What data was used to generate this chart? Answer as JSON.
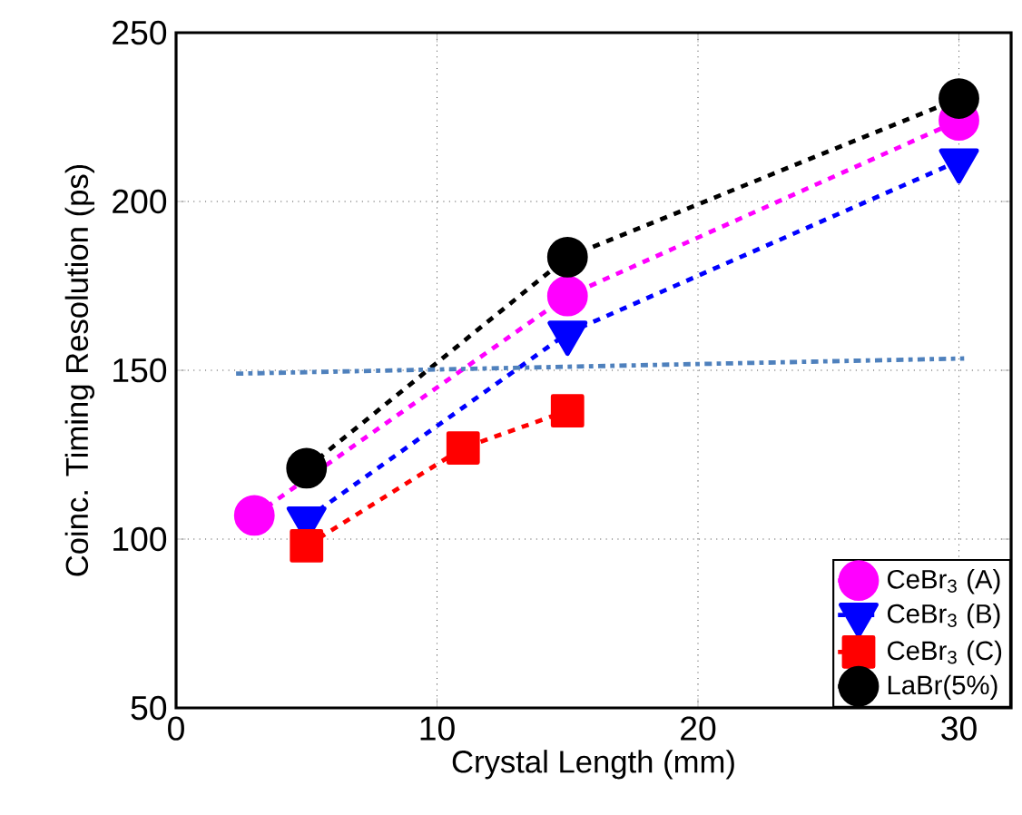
{
  "chart_data": {
    "type": "line",
    "xlabel": "Crystal Length (mm)",
    "ylabel": "Coinc. Timing Resolution (ps)",
    "xlim": [
      0,
      32
    ],
    "ylim": [
      50,
      250
    ],
    "xticks": [
      0,
      10,
      20,
      30
    ],
    "yticks": [
      50,
      100,
      150,
      200,
      250
    ],
    "grid": true,
    "legend": "bottom right",
    "line_style": "dashed",
    "series": [
      {
        "name": "CeBr$_{3}$ (A)",
        "color": "#ff00ff",
        "marker": "circle",
        "x": [
          3,
          5,
          15,
          30
        ],
        "values": [
          107,
          null,
          172,
          224
        ]
      },
      {
        "name": "CeBr$_{3}$ (B)",
        "color": "#0000ff",
        "marker": "triangle",
        "x": [
          5,
          15,
          30
        ],
        "values": [
          106,
          161,
          212
        ]
      },
      {
        "name": "CeBr$_{3}$ (C)",
        "color": "#ff0000",
        "marker": "square",
        "x": [
          5,
          11,
          15
        ],
        "values": [
          98,
          127,
          138
        ]
      },
      {
        "name": "LaBr(5%)",
        "color": "#000000",
        "marker": "circle",
        "x": [
          5,
          15,
          30
        ],
        "values": [
          121,
          183.5,
          230.5
        ]
      },
      {
        "color": "#4f81bd",
        "marker": "none",
        "line_style": "dashdot",
        "x": [
          2.3,
          30.2
        ],
        "values": [
          149,
          153.5
        ]
      }
    ]
  }
}
